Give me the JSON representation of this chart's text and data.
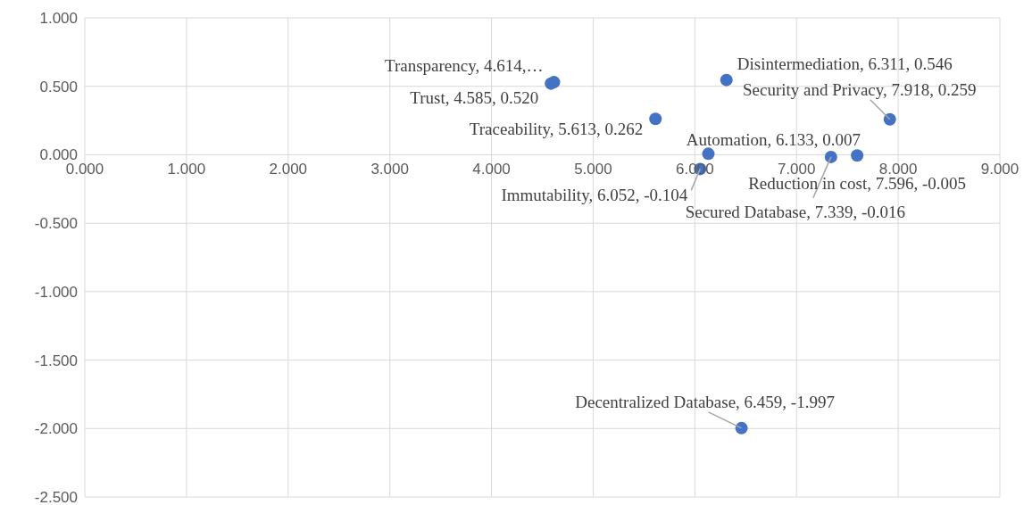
{
  "chart_data": {
    "type": "scatter",
    "x": [
      4.614,
      4.585,
      5.613,
      6.311,
      7.918,
      6.133,
      6.052,
      7.339,
      7.596,
      6.459
    ],
    "values": [
      0.53,
      0.52,
      0.262,
      0.546,
      0.259,
      0.007,
      -0.104,
      -0.016,
      -0.005,
      -1.997
    ],
    "value_labels": [
      "Transparency, 4.614,…",
      "Trust, 4.585, 0.520",
      "Traceability, 5.613, 0.262",
      "Disintermediation, 6.311, 0.546",
      "Security and Privacy, 7.918, 0.259",
      "Automation, 6.133, 0.007",
      "Immutability, 6.052, -0.104",
      "Secured Database, 7.339, -0.016",
      "Reduction in cost, 7.596, -0.005",
      "Decentralized Database, 6.459, -1.997"
    ],
    "color": "#4472c4",
    "marker": "circle",
    "grid": true,
    "xlim": [
      0,
      9
    ],
    "xticks": [
      {
        "value": 0,
        "label": "0.000"
      },
      {
        "value": 1,
        "label": "1.000"
      },
      {
        "value": 2,
        "label": "2.000"
      },
      {
        "value": 3,
        "label": "3.000"
      },
      {
        "value": 4,
        "label": "4.000"
      },
      {
        "value": 5,
        "label": "5.000"
      },
      {
        "value": 6,
        "label": "6.000"
      },
      {
        "value": 7,
        "label": "7.000"
      },
      {
        "value": 8,
        "label": "8.000"
      },
      {
        "value": 9,
        "label": "9.000"
      }
    ],
    "ylim": [
      -2.5,
      1
    ],
    "yticks": [
      {
        "value": 1,
        "label": "1.000"
      },
      {
        "value": 0.5,
        "label": "0.500"
      },
      {
        "value": 0,
        "label": "0.000"
      },
      {
        "value": -0.5,
        "label": "-0.500"
      },
      {
        "value": -1,
        "label": "-1.000"
      },
      {
        "value": -1.5,
        "label": "-1.500"
      },
      {
        "value": -2,
        "label": "-2.000"
      },
      {
        "value": -2.5,
        "label": "-2.500"
      }
    ]
  }
}
